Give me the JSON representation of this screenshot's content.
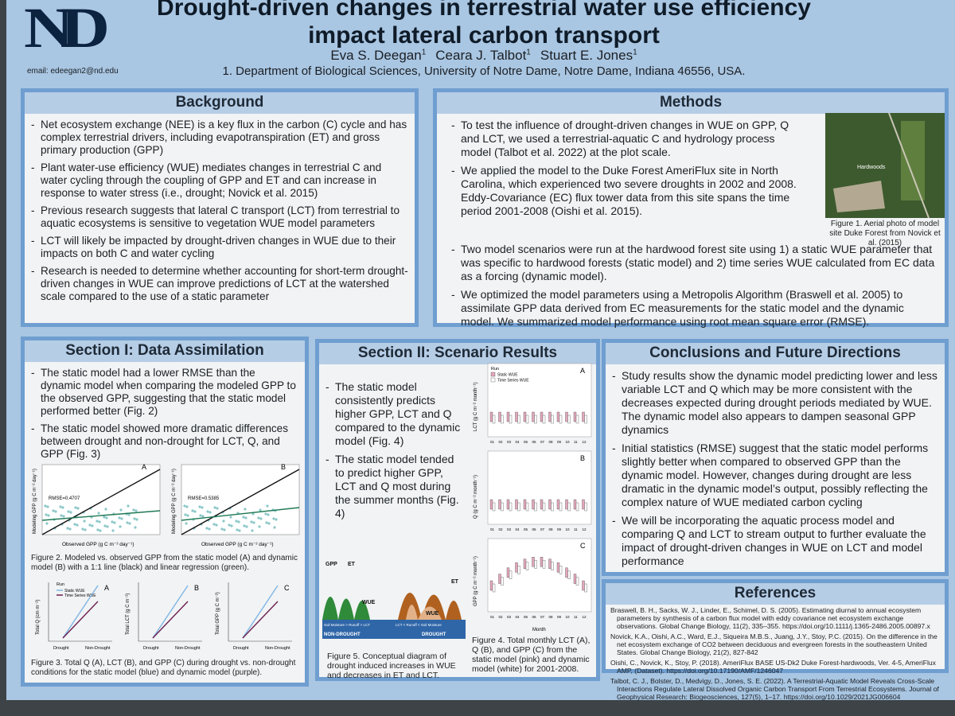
{
  "header": {
    "logo": "ND",
    "title": [
      "Drought-driven changes in terrestrial water use efficiency",
      "impact lateral carbon transport"
    ],
    "authors": [
      {
        "name": "Eva S. Deegan",
        "mark": "1"
      },
      {
        "name": "Ceara J. Talbot",
        "mark": "1"
      },
      {
        "name": "Stuart E. Jones",
        "mark": "1"
      }
    ],
    "affiliation": "1. Department of Biological Sciences, University of Notre Dame, Notre Dame, Indiana 46556, USA.",
    "email": "email: edeegan2@nd.edu"
  },
  "background": {
    "heading": "Background",
    "bullets": [
      "Net ecosystem exchange (NEE)  is a key flux in the carbon (C) cycle and has complex terrestrial drivers, including evapotranspiration (ET) and gross primary production (GPP)",
      "Plant water-use efficiency (WUE) mediates changes in terrestrial C and water cycling through the coupling of GPP and ET and can increase in response to water stress (i.e., drought; Novick et al. 2015)",
      "Previous research suggests that lateral C transport (LCT) from terrestrial to aquatic ecosystems is sensitive to vegetation WUE model parameters",
      "LCT will likely be impacted by drought-driven changes in WUE due to their impacts on both C and water cycling",
      "Research is needed to determine whether accounting for short-term drought-driven changes in WUE can improve predictions of LCT at the watershed scale compared to the use of a static parameter"
    ]
  },
  "methods": {
    "heading": "Methods",
    "bullets": [
      "To test the influence of drought-driven changes in WUE on GPP, Q and LCT, we used a terrestrial-aquatic C and hydrology process model (Talbot et al. 2022) at the plot scale.",
      "We applied the model to the Duke Forest AmeriFlux site in North Carolina, which experienced two severe droughts in 2002 and 2008. Eddy-Covariance (EC) flux tower data from this site spans the time period 2001-2008 (Oishi et al. 2015).",
      "Two model scenarios were run at the hardwood forest site using 1) a static WUE parameter that was specific to hardwood forests (static model) and 2) time series WUE calculated from EC data as a forcing (dynamic model).",
      "We optimized the model parameters using a Metropolis Algorithm (Braswell et al. 2005) to assimilate GPP data derived from EC measurements for the static model and the dynamic model. We summarized model performance using root mean square error (RMSE)."
    ],
    "photo_label": "Hardwoods",
    "figure_caption": "Figure 1. Aerial photo of model site Duke Forest from Novick et al. (2015)"
  },
  "section1": {
    "heading": "Section I: Data Assimilation",
    "bullets": [
      "The static model had a lower RMSE than the dynamic model when comparing the modeled GPP to the observed GPP, suggesting that the static model performed better (Fig. 2)",
      "The static model showed more dramatic differences between drought and non-drought for LCT, Q, and GPP (Fig. 3)"
    ],
    "figure2": {
      "panels": [
        {
          "label": "A",
          "rmse": "RMSE=0.4707"
        },
        {
          "label": "B",
          "rmse": "RMSE=0.5385"
        }
      ],
      "y_label": "Modeling GPP (g C m⁻² day⁻¹)",
      "x_label": "Observed GPP (g C m⁻² day⁻¹)",
      "caption": "Figure 2. Modeled vs. observed GPP from the static model (A) and dynamic model (B) with a 1:1 line (black) and linear regression (green)."
    },
    "figure3": {
      "legend_title": "Run",
      "legend": [
        "Static WUE",
        "Time Series WUE"
      ],
      "panels": [
        {
          "label": "A",
          "y_label": "Total Q (cm m⁻²)"
        },
        {
          "label": "B",
          "y_label": "Total LCT (g C m⁻²)"
        },
        {
          "label": "C",
          "y_label": "Total GPP (g C m⁻²)"
        }
      ],
      "x_categories": [
        "Drought",
        "Non-Drought"
      ],
      "caption": "Figure 3. Total Q (A), LCT (B), and GPP (C) during drought vs. non-drought conditions for the static model (blue) and dynamic model (purple)."
    }
  },
  "section2": {
    "heading": "Section II: Scenario Results",
    "bullets": [
      "The static model consistently predicts higher GPP, LCT and Q compared to the dynamic model (Fig. 4)",
      "The static model tended to predict higher GPP, LCT and Q most during the summer months (Fig. 4)"
    ],
    "figure5": {
      "labels": {
        "gpp": "GPP",
        "et": "ET",
        "wue_left": "WUE",
        "wue_right": "WUE",
        "soil_left": "Soil Moisture > Runoff > LCT",
        "soil_right": "LCT < Runoff < Soil Moisture",
        "non_drought": "NON-DROUGHT",
        "drought": "DROUGHT",
        "et_right": "ET"
      },
      "caption": "Figure 5. Conceptual diagram of drought induced increases in WUE and decreases in ET and LCT."
    },
    "figure4": {
      "legend_title": "Run",
      "legend": [
        "Static WUE",
        "Time Series WUE"
      ],
      "panels": [
        {
          "label": "A",
          "y_label": "LCT (g C m⁻² month⁻¹)"
        },
        {
          "label": "B",
          "y_label": "Q (g C m⁻² month⁻¹)"
        },
        {
          "label": "C",
          "y_label": "GPP (g C m⁻² month⁻¹)"
        }
      ],
      "months": [
        "01",
        "02",
        "03",
        "04",
        "05",
        "06",
        "07",
        "08",
        "09",
        "10",
        "11",
        "12"
      ],
      "x_label": "Month",
      "caption": "Figure 4. Total monthly LCT (A), Q (B), and GPP (C) from the static model (pink) and dynamic model (white) for 2001-2008."
    }
  },
  "conclusions": {
    "heading": "Conclusions and Future Directions",
    "bullets": [
      "Study results show the dynamic model predicting lower and less variable LCT and Q which may be more consistent with the decreases expected during drought periods mediated by WUE. The dynamic model also appears to dampen seasonal GPP dynamics",
      "Initial statistics (RMSE) suggest that the static model performs slightly better when compared to observed GPP than the dynamic model. However, changes during drought are less dramatic in the dynamic model’s output, possibly reflecting the complex nature of WUE mediated carbon cycling",
      "We will be incorporating the aquatic process model and comparing Q and LCT to stream output to further evaluate the impact of drought-driven changes in WUE on LCT and model performance"
    ]
  },
  "references": {
    "heading": "References",
    "items": [
      "Braswell, B. H., Sacks, W. J., Linder, E., Schimel, D. S. (2005). Estimating diurnal to annual ecosystem parameters by synthesis of a carbon flux model with eddy covariance net ecosystem exchange observations. Global Change Biology, 11(2), 335–355. https://doi.org/10.1111/j.1365-2486.2005.00897.x",
      "Novick, K.A., Oishi, A.C., Ward, E.J., Siqueira M.B.S., Juang, J.Y., Stoy, P.C. (2015). On the difference in the net ecosystem exchange of CO2 between deciduous and evergreen forests in the southeastern United States. Global Change Biology, 21(2), 827-842",
      "Oishi, C., Novick, K., Stoy, P. (2018). AmeriFlux BASE US-Dk2 Duke Forest-hardwoods, Ver. 4-5, AmeriFlux AMP, (Dataset). https://doi.org/10.17190/AMF/1246047",
      "Talbot, C. J., Bolster, D., Medvigy, D., Jones, S. E. (2022). A Terrestrial-Aquatic Model Reveals Cross-Scale Interactions Regulate Lateral Dissolved Organic Carbon Transport From Terrestrial Ecosystems. Journal of Geophysical Research: Biogeosciences, 127(5), 1–17. https://doi.org/10.1029/2021JG006604"
    ]
  }
}
